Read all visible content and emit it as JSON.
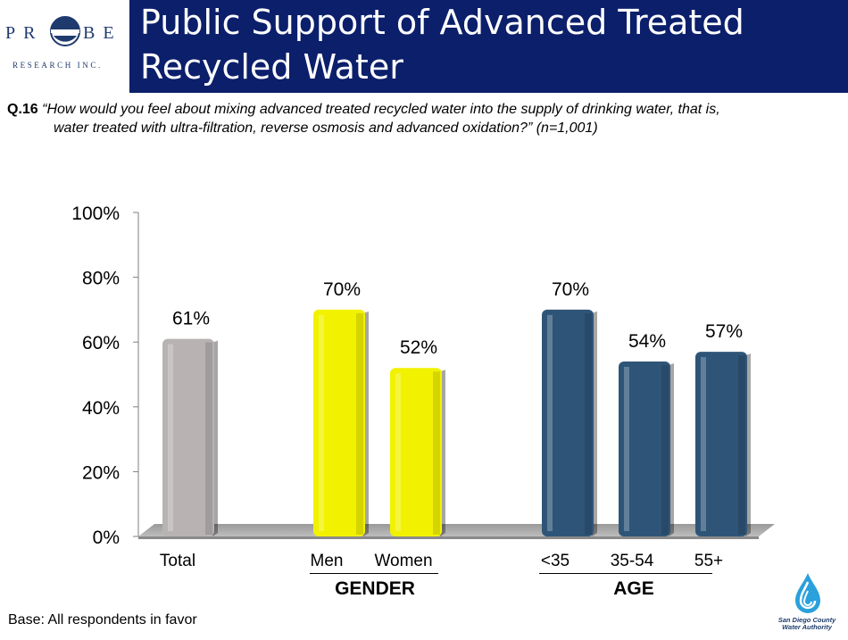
{
  "header": {
    "logo": {
      "left": "PR",
      "right": "BE",
      "subtitle": "RESEARCH INC."
    },
    "title_line1": "Public Support of Advanced Treated",
    "title_line2": "Recycled Water"
  },
  "question": {
    "number": "Q.16",
    "text_line1": "“How would you feel about mixing advanced treated recycled water into the supply of drinking water, that is,",
    "text_line2": "water treated with ultra-filtration, reverse osmosis and advanced oxidation?” (n=1,001)"
  },
  "chart_data": {
    "type": "bar",
    "categories": [
      "Total",
      "Men",
      "Women",
      "<35",
      "35-54",
      "55+"
    ],
    "values": [
      61,
      70,
      52,
      70,
      54,
      57
    ],
    "value_labels": [
      "61%",
      "70%",
      "52%",
      "70%",
      "54%",
      "57%"
    ],
    "bar_colors": [
      "#b8b2b2",
      "#f2f200",
      "#f2f200",
      "#2e5577",
      "#2e5577",
      "#2e5577"
    ],
    "y_ticks": [
      "0%",
      "20%",
      "40%",
      "60%",
      "80%",
      "100%"
    ],
    "ylim": [
      0,
      100
    ],
    "groups": [
      {
        "label": "GENDER",
        "categories": [
          "Men",
          "Women"
        ]
      },
      {
        "label": "AGE",
        "categories": [
          "<35",
          "35-54",
          "55+"
        ]
      }
    ],
    "grid": false,
    "style": "3d-column"
  },
  "footer": {
    "base": "Base:  All respondents in favor",
    "org_line1": "San Diego County",
    "org_line2": "Water Authority"
  }
}
